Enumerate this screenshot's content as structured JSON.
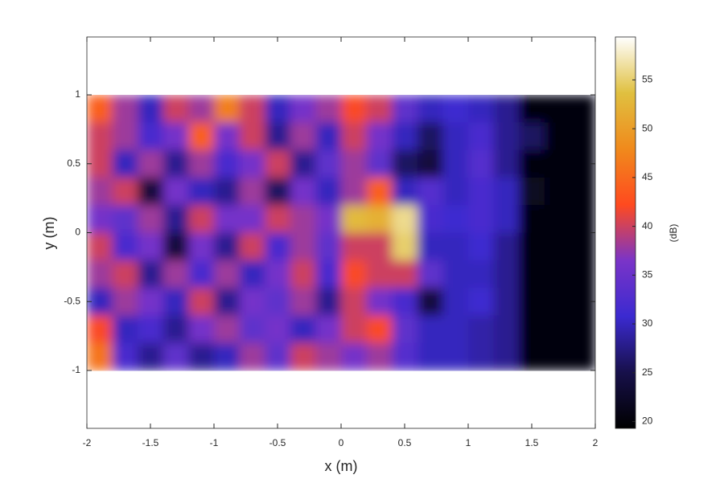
{
  "chart_data": {
    "type": "heatmap",
    "xlabel": "x (m)",
    "ylabel": "y (m)",
    "colorbar_label": "(dB)",
    "xlim": [
      -2,
      2
    ],
    "ylim": [
      -1.42,
      1.42
    ],
    "xticks": [
      -2,
      -1.5,
      -1,
      -0.5,
      0,
      0.5,
      1,
      1.5,
      2
    ],
    "yticks": [
      -1,
      -0.5,
      0,
      0.5,
      1
    ],
    "clim": [
      19.3,
      59.4
    ],
    "cticks": [
      20,
      25,
      30,
      35,
      40,
      45,
      50,
      55
    ],
    "colormap": [
      "#000000",
      "#17104a",
      "#3b2ad0",
      "#7a34c8",
      "#ff4a1f",
      "#f08a1c",
      "#e0c040",
      "#ffffff"
    ],
    "x": [
      -1.9,
      -1.7,
      -1.5,
      -1.3,
      -1.1,
      -0.9,
      -0.7,
      -0.5,
      -0.3,
      -0.1,
      0.1,
      0.3,
      0.5,
      0.7,
      0.9,
      1.1,
      1.3,
      1.5,
      1.7,
      1.9
    ],
    "y": [
      0.9,
      0.7,
      0.5,
      0.3,
      0.1,
      -0.1,
      -0.3,
      -0.5,
      -0.7,
      -0.9
    ],
    "z": [
      [
        44,
        38,
        30,
        40,
        38,
        47,
        40,
        30,
        36,
        38,
        42,
        40,
        34,
        30,
        31,
        30,
        28,
        20,
        20,
        20
      ],
      [
        40,
        38,
        32,
        36,
        44,
        36,
        40,
        28,
        38,
        30,
        40,
        36,
        30,
        26,
        30,
        32,
        28,
        26,
        20,
        20
      ],
      [
        40,
        30,
        38,
        28,
        38,
        32,
        36,
        40,
        28,
        34,
        38,
        34,
        26,
        24,
        30,
        33,
        28,
        20,
        20,
        20
      ],
      [
        38,
        40,
        24,
        36,
        30,
        28,
        38,
        26,
        36,
        30,
        38,
        44,
        30,
        33,
        30,
        32,
        30,
        22,
        20,
        20
      ],
      [
        36,
        34,
        38,
        28,
        40,
        36,
        36,
        40,
        38,
        36,
        53,
        52,
        56,
        32,
        31,
        32,
        30,
        20,
        20,
        20
      ],
      [
        40,
        32,
        36,
        24,
        36,
        28,
        40,
        32,
        38,
        34,
        40,
        40,
        55,
        30,
        30,
        31,
        28,
        20,
        20,
        20
      ],
      [
        38,
        40,
        28,
        38,
        32,
        38,
        30,
        36,
        40,
        32,
        42,
        40,
        40,
        34,
        30,
        30,
        28,
        20,
        20,
        20
      ],
      [
        30,
        38,
        36,
        30,
        40,
        28,
        36,
        34,
        38,
        28,
        40,
        36,
        32,
        24,
        30,
        31,
        28,
        20,
        20,
        20
      ],
      [
        42,
        30,
        32,
        28,
        36,
        38,
        34,
        36,
        30,
        36,
        40,
        42,
        34,
        30,
        30,
        29,
        28,
        20,
        20,
        20
      ],
      [
        46,
        32,
        28,
        34,
        28,
        30,
        38,
        34,
        40,
        38,
        36,
        38,
        33,
        30,
        30,
        29,
        28,
        20,
        20,
        20
      ]
    ]
  }
}
